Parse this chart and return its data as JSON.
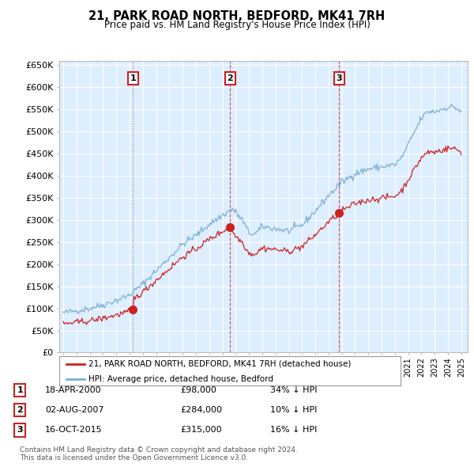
{
  "title": "21, PARK ROAD NORTH, BEDFORD, MK41 7RH",
  "subtitle": "Price paid vs. HM Land Registry's House Price Index (HPI)",
  "property_label": "21, PARK ROAD NORTH, BEDFORD, MK41 7RH (detached house)",
  "hpi_label": "HPI: Average price, detached house, Bedford",
  "copyright": "Contains HM Land Registry data © Crown copyright and database right 2024.\nThis data is licensed under the Open Government Licence v3.0.",
  "transactions": [
    {
      "num": 1,
      "date": "18-APR-2000",
      "price": "£98,000",
      "change": "34% ↓ HPI"
    },
    {
      "num": 2,
      "date": "02-AUG-2007",
      "price": "£284,000",
      "change": "10% ↓ HPI"
    },
    {
      "num": 3,
      "date": "16-OCT-2015",
      "price": "£315,000",
      "change": "16% ↓ HPI"
    }
  ],
  "transaction_years": [
    2000.25,
    2007.58,
    2015.79
  ],
  "transaction_prices": [
    98000,
    284000,
    315000
  ],
  "ylim": [
    0,
    660000
  ],
  "yticks": [
    0,
    50000,
    100000,
    150000,
    200000,
    250000,
    300000,
    350000,
    400000,
    450000,
    500000,
    550000,
    600000,
    650000
  ],
  "hpi_color": "#7ab0d4",
  "property_color": "#cc2222",
  "background_color": "#ffffff",
  "chart_bg_color": "#ddeeff",
  "grid_color": "#ffffff",
  "annotation_box_color": "#cc2222"
}
